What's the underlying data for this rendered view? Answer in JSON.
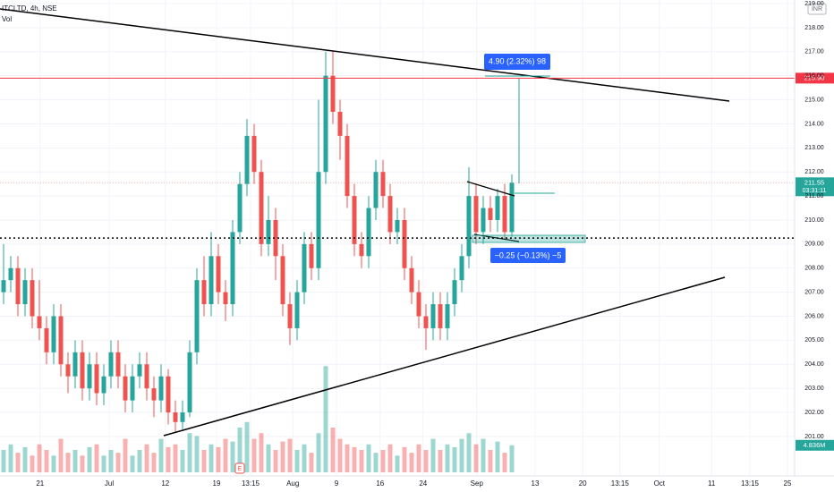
{
  "chart_data": {
    "type": "candlestick",
    "title": "ITCLTD, 4h, NSE",
    "volume_title": "Vol",
    "currency": "INR",
    "up_color": "#26a69a",
    "down_color": "#ef5350",
    "open": [
      207,
      207.5,
      208,
      206.5,
      207.5,
      206,
      205.5,
      204.5,
      206,
      204,
      203.5,
      204.5,
      203,
      204,
      202.8,
      203.5,
      204.5,
      203.5,
      202.5,
      203.5,
      204,
      203,
      202.5,
      203.5,
      202,
      201.6,
      202,
      204.5,
      207.5,
      206.5,
      208.5,
      207,
      206.5,
      209.5,
      211.5,
      213.5,
      212,
      209,
      210,
      208.5,
      206.5,
      205.5,
      207,
      209,
      208,
      212,
      216,
      214.5,
      213.5,
      211,
      209,
      208.5,
      210.5,
      212,
      211,
      209.5,
      210,
      208,
      207,
      206,
      205.5,
      206.5,
      205.5,
      206.5,
      207.5,
      208.5,
      211,
      209.5,
      210.5,
      210,
      211,
      209.5
    ],
    "high": [
      209,
      208.5,
      208.5,
      208,
      208,
      207.5,
      206,
      206.5,
      206.5,
      204.5,
      205,
      205,
      204.5,
      204.5,
      204,
      205,
      205,
      204,
      204,
      204.5,
      204.5,
      203.5,
      204,
      203.8,
      202.5,
      202.5,
      205,
      208,
      208.5,
      209.5,
      209,
      207.5,
      210,
      212,
      214.2,
      214,
      212.5,
      211,
      210.5,
      209,
      207,
      207.5,
      209.5,
      209.5,
      215,
      217,
      217,
      215,
      214,
      211.5,
      209.5,
      211,
      212.5,
      212.5,
      211.5,
      210.5,
      210.5,
      208.5,
      207.5,
      206.5,
      207,
      207,
      207,
      208,
      209,
      212.2,
      211.5,
      211,
      211,
      211.3,
      211.5,
      211.9
    ],
    "low": [
      206.5,
      207,
      206,
      206,
      205.5,
      205,
      204,
      204,
      203.5,
      202.8,
      203,
      202.5,
      202.5,
      202.3,
      202.3,
      203,
      203,
      202,
      202,
      203,
      202.5,
      201.8,
      202,
      201.5,
      201.2,
      201.3,
      201.8,
      204,
      206,
      206,
      206.5,
      205.8,
      206,
      209,
      211,
      211.5,
      208.5,
      208.5,
      207.5,
      206,
      204.8,
      205,
      206.5,
      207.5,
      207.5,
      211.5,
      214,
      212.5,
      210.5,
      208.5,
      208,
      208,
      210,
      210.5,
      209,
      209,
      207.5,
      206.5,
      205.5,
      204.6,
      205,
      205,
      205,
      206,
      207,
      208,
      209,
      209,
      209.5,
      209.5,
      209.2,
      209.3
    ],
    "close": [
      207.5,
      208,
      206.5,
      207.5,
      206,
      205.5,
      204.5,
      206,
      204,
      203.5,
      204.5,
      203,
      204,
      202.8,
      203.5,
      204.5,
      203.5,
      202.5,
      203.5,
      204,
      203,
      202.5,
      203.5,
      202,
      201.6,
      202,
      204.5,
      207.5,
      206.5,
      208.5,
      207,
      206.5,
      209.5,
      211.5,
      213.5,
      212,
      209,
      210,
      208.5,
      206.5,
      205.5,
      207,
      209,
      208,
      212,
      216,
      214.5,
      213.5,
      211,
      209,
      208.5,
      210.5,
      212,
      211,
      209.5,
      210,
      208,
      207,
      206,
      205.5,
      206.5,
      205.5,
      206.5,
      207.5,
      208.5,
      211,
      209.5,
      210.5,
      210,
      211,
      209.5,
      211.55
    ],
    "volume": [
      4,
      5,
      3.5,
      4.5,
      3,
      5,
      4,
      3,
      6,
      3.5,
      4,
      3,
      4.5,
      5,
      3,
      4,
      3.5,
      6,
      3,
      4,
      5,
      3.5,
      6,
      4.5,
      5,
      4,
      7,
      6.5,
      4,
      5,
      4.5,
      6,
      5.5,
      8,
      9,
      6,
      7,
      5,
      4,
      5.5,
      6,
      4,
      5,
      3.5,
      7,
      19,
      8,
      6,
      5,
      4.5,
      4,
      5,
      3.5,
      4,
      5,
      3,
      4.5,
      3.5,
      5,
      4,
      6,
      4,
      5,
      4.5,
      6,
      7,
      5,
      6,
      4,
      5.5,
      3.5,
      4.836
    ],
    "last_volume_label": "4.836M",
    "vlim": [
      0,
      24
    ],
    "ylim": [
      199.36,
      219.15
    ],
    "yticks": [
      {
        "value": 201,
        "label": "201.00"
      },
      {
        "value": 202,
        "label": "202.00"
      },
      {
        "value": 203,
        "label": "203.00"
      },
      {
        "value": 204,
        "label": "204.00"
      },
      {
        "value": 205,
        "label": "205.00"
      },
      {
        "value": 206,
        "label": "206.00"
      },
      {
        "value": 207,
        "label": "207.00"
      },
      {
        "value": 208,
        "label": "208.00"
      },
      {
        "value": 209,
        "label": "209.00"
      },
      {
        "value": 210,
        "label": "210.00"
      },
      {
        "value": 211,
        "label": "211.00"
      },
      {
        "value": 212,
        "label": "212.00"
      },
      {
        "value": 213,
        "label": "213.00"
      },
      {
        "value": 214,
        "label": "214.00"
      },
      {
        "value": 215,
        "label": "215.00"
      },
      {
        "value": 216,
        "label": "216.00"
      },
      {
        "value": 217,
        "label": "217.00"
      },
      {
        "value": 218,
        "label": "218.00"
      },
      {
        "value": 219,
        "label": "219.00"
      }
    ],
    "xlim": [
      0,
      110
    ],
    "xticks": [
      {
        "value": 5.6,
        "label": "21"
      },
      {
        "value": 15.25,
        "label": "Jul"
      },
      {
        "value": 23.1,
        "label": "12"
      },
      {
        "value": 30.25,
        "label": "19"
      },
      {
        "value": 35,
        "label": "13:15"
      },
      {
        "value": 40.9,
        "label": "Aug"
      },
      {
        "value": 47,
        "label": "9"
      },
      {
        "value": 53.1,
        "label": "16"
      },
      {
        "value": 59.1,
        "label": "24"
      },
      {
        "value": 66.6,
        "label": "Sep"
      },
      {
        "value": 74.75,
        "label": "13"
      },
      {
        "value": 81.4,
        "label": "20"
      },
      {
        "value": 86.6,
        "label": "13:15"
      },
      {
        "value": 92.1,
        "label": "Oct"
      },
      {
        "value": 99.4,
        "label": "11"
      },
      {
        "value": 104.75,
        "label": "13:15"
      },
      {
        "value": 110,
        "label": "25"
      }
    ],
    "price_line": {
      "value": 215.9,
      "label": "215.90",
      "color": "#f23645"
    },
    "dotted_line": {
      "value": 209.25
    },
    "last_price": {
      "value": 211.55,
      "label": "211.55",
      "countdown": "03:31:11"
    },
    "annotations": [
      "4.90 (2.32%) 98",
      "−0.25 (−0.13%) −5"
    ],
    "event_marker": "E",
    "grid": true
  }
}
